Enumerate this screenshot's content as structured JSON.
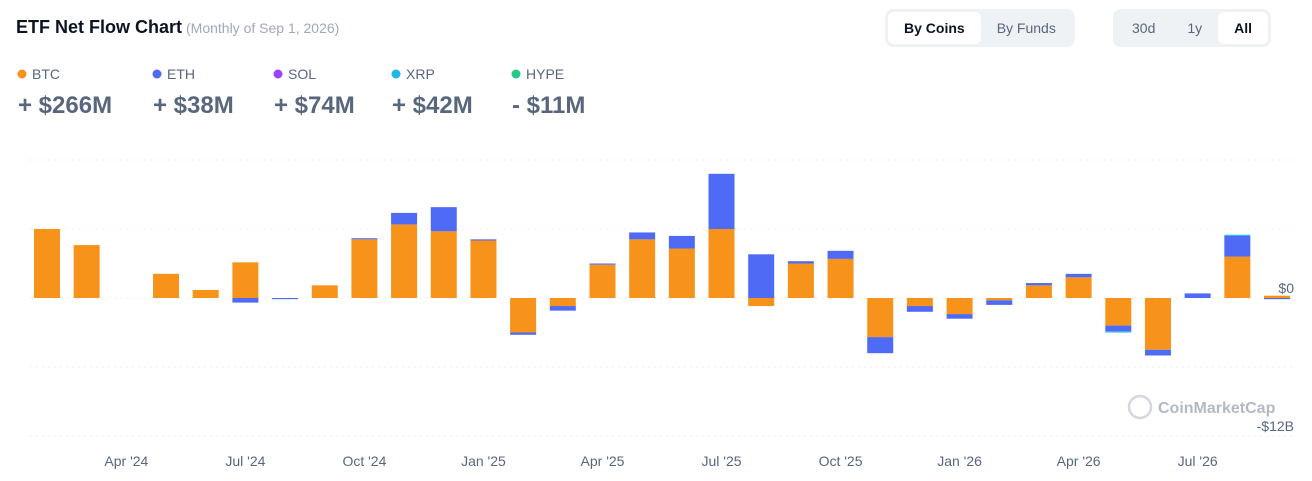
{
  "header": {
    "title": "ETF Net Flow Chart",
    "subtitle": "(Monthly of Sep 1, 2026)"
  },
  "controls": {
    "view": [
      "By Coins",
      "By Funds"
    ],
    "view_active": 0,
    "range": [
      "30d",
      "1y",
      "All"
    ],
    "range_active": 2
  },
  "watermark": "CoinMarketCap",
  "chart_data": {
    "type": "stacked_bar",
    "categories": [
      null,
      null,
      "Apr '24",
      null,
      null,
      "Jul '24",
      null,
      null,
      "Oct '24",
      null,
      null,
      "Jan '25",
      null,
      null,
      "Apr '25",
      null,
      null,
      "Jul '25",
      null,
      null,
      "Oct '25",
      null,
      null,
      "Jan '26",
      null,
      null,
      "Apr '26",
      null,
      null,
      "Jul '26",
      null,
      null
    ],
    "series": [
      {
        "name": "BTC",
        "color": "#f7931a",
        "total": "+ $266M",
        "total_color": "#16c784",
        "values": [
          6.0,
          4.6,
          0,
          2.1,
          0.7,
          3.1,
          0,
          1.1,
          5.1,
          6.4,
          5.8,
          5.0,
          -3.0,
          -0.7,
          2.9,
          5.1,
          4.3,
          6.0,
          -0.7,
          3.0,
          3.4,
          -3.4,
          -0.7,
          -1.4,
          -0.2,
          1.1,
          1.8,
          -2.4,
          -4.5,
          0,
          3.6,
          0.2
        ]
      },
      {
        "name": "ETH",
        "color": "#4f6af5",
        "total": "+ $38M",
        "total_color": "#16c784",
        "values": [
          0,
          0,
          0,
          0,
          0,
          -0.4,
          -0.1,
          0,
          0.1,
          1.0,
          2.1,
          0.1,
          -0.2,
          -0.4,
          0.1,
          0.6,
          1.1,
          4.8,
          3.8,
          0.2,
          0.7,
          -1.4,
          -0.5,
          -0.4,
          -0.4,
          0.2,
          0.3,
          -0.5,
          -0.5,
          0.4,
          1.8,
          -0.1
        ]
      },
      {
        "name": "SOL",
        "color": "#9945ff",
        "total": "+ $74M",
        "total_color": "#16c784",
        "values": [
          0,
          0,
          0,
          0,
          0,
          0,
          0,
          0,
          0,
          0,
          0,
          0,
          0,
          0,
          0,
          0,
          0,
          0,
          0,
          0,
          0,
          0,
          0,
          0,
          0,
          0,
          0,
          0,
          0,
          0,
          0,
          0
        ]
      },
      {
        "name": "XRP",
        "color": "#23b5e8",
        "total": "+ $42M",
        "total_color": "#16c784",
        "values": [
          0,
          0,
          0,
          0,
          0,
          0,
          0,
          0,
          0,
          0,
          0,
          0,
          0,
          0,
          0,
          0,
          0,
          0,
          0,
          0,
          0,
          0,
          0,
          0,
          0,
          0,
          0,
          -0.1,
          0,
          0,
          0.1,
          0
        ]
      },
      {
        "name": "HYPE",
        "color": "#25c98a",
        "total": "- $11M",
        "total_color": "#ea3943",
        "values": [
          0,
          0,
          0,
          0,
          0,
          0,
          0,
          0,
          0,
          0,
          0,
          0,
          0,
          0,
          0,
          0,
          0,
          0,
          0,
          0,
          0,
          0,
          0,
          0,
          0,
          0,
          0,
          0,
          0,
          0,
          0,
          0
        ]
      }
    ],
    "ylim": [
      -12,
      12
    ],
    "yticks": [
      {
        "value": 0,
        "label": "$0"
      },
      {
        "value": -12,
        "label": "-$12B"
      }
    ],
    "ygrid": [
      12,
      6,
      0,
      -6,
      -12
    ],
    "grid": true
  }
}
